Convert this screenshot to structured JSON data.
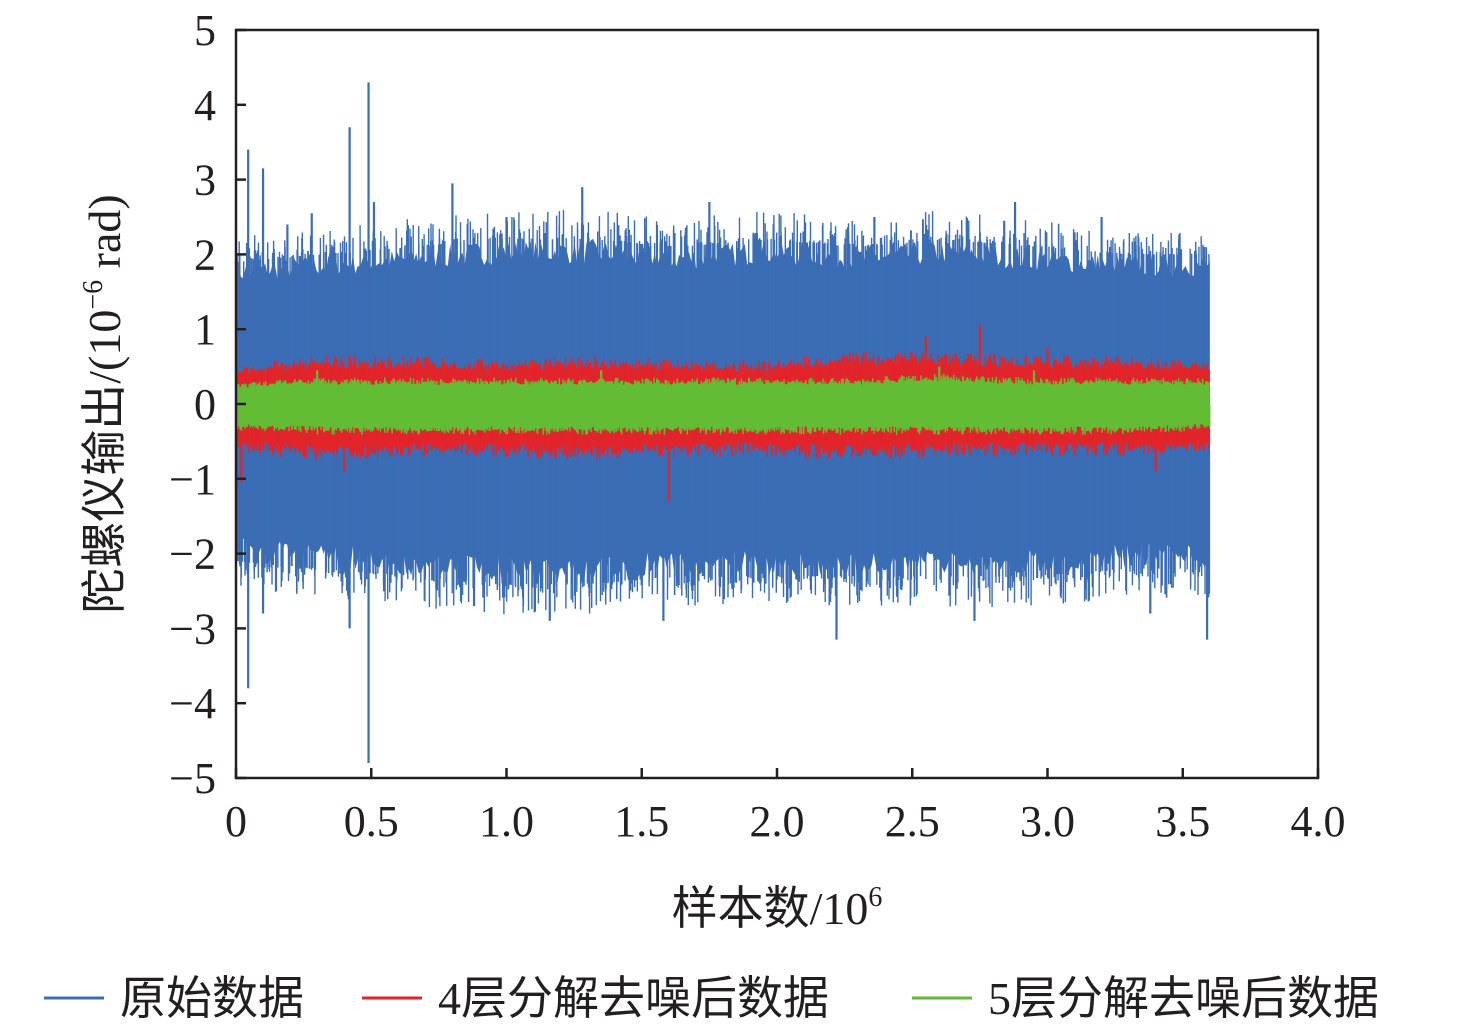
{
  "chart_data": {
    "type": "line",
    "xlabel_main": "样本数/10",
    "xlabel_sup": "6",
    "ylabel_main": "陀螺仪输出/(10",
    "ylabel_sup": "−6",
    "ylabel_tail": " rad)",
    "xlim": [
      0,
      4.0
    ],
    "ylim": [
      -5,
      5
    ],
    "x_ticks": [
      "0",
      "0.5",
      "1.0",
      "1.5",
      "2.0",
      "2.5",
      "3.0",
      "3.5",
      "4.0"
    ],
    "y_ticks": [
      "−5",
      "−4",
      "−3",
      "−2",
      "−1",
      "0",
      "1",
      "2",
      "3",
      "4",
      "5"
    ],
    "x_range_of_data": [
      0,
      3.6
    ],
    "grid": false,
    "legend_position": "bottom",
    "series": [
      {
        "name": "原始数据",
        "color": "#3b6db5",
        "envelope_upper": [
          1.9,
          2.0,
          2.1,
          2.2,
          2.2,
          2.1,
          2.2,
          2.1,
          2.2,
          2.1,
          2.0,
          2.0
        ],
        "envelope_lower": [
          -2.1,
          -2.2,
          -2.3,
          -2.4,
          -2.4,
          -2.3,
          -2.3,
          -2.3,
          -2.3,
          -2.3,
          -2.2,
          -2.2
        ],
        "spikes": [
          {
            "x": 0.045,
            "y": 3.4
          },
          {
            "x": 0.045,
            "y": -3.8
          },
          {
            "x": 0.1,
            "y": 3.15
          },
          {
            "x": 0.1,
            "y": -2.8
          },
          {
            "x": 0.19,
            "y": 2.4
          },
          {
            "x": 0.28,
            "y": 2.55
          },
          {
            "x": 0.42,
            "y": 3.7
          },
          {
            "x": 0.42,
            "y": -3.0
          },
          {
            "x": 0.49,
            "y": 4.3
          },
          {
            "x": 0.49,
            "y": -4.8
          },
          {
            "x": 0.51,
            "y": 2.7
          },
          {
            "x": 0.8,
            "y": 2.95
          },
          {
            "x": 0.88,
            "y": -2.7
          },
          {
            "x": 1.0,
            "y": 2.5
          },
          {
            "x": 1.16,
            "y": -2.9
          },
          {
            "x": 1.28,
            "y": 2.9
          },
          {
            "x": 1.58,
            "y": -2.9
          },
          {
            "x": 1.75,
            "y": 2.7
          },
          {
            "x": 2.22,
            "y": -3.15
          },
          {
            "x": 2.36,
            "y": 2.5
          },
          {
            "x": 2.73,
            "y": -2.9
          },
          {
            "x": 2.88,
            "y": 2.7
          },
          {
            "x": 2.84,
            "y": 2.45
          },
          {
            "x": 3.2,
            "y": 2.5
          },
          {
            "x": 3.38,
            "y": -2.8
          },
          {
            "x": 3.58,
            "y": 2.1
          },
          {
            "x": 3.59,
            "y": -3.15
          }
        ]
      },
      {
        "name": "4层分解去噪后数据",
        "color": "#e2242b",
        "envelope_upper": [
          0.45,
          0.55,
          0.55,
          0.5,
          0.55,
          0.5,
          0.5,
          0.6,
          0.6,
          0.55,
          0.55,
          0.5
        ],
        "envelope_lower": [
          -0.55,
          -0.65,
          -0.6,
          -0.6,
          -0.65,
          -0.6,
          -0.6,
          -0.65,
          -0.6,
          -0.6,
          -0.6,
          -0.55
        ],
        "spikes": [
          {
            "x": 0.02,
            "y": -1.05
          },
          {
            "x": 0.4,
            "y": -0.9
          },
          {
            "x": 1.6,
            "y": -1.3
          },
          {
            "x": 2.55,
            "y": 0.9
          },
          {
            "x": 2.75,
            "y": 1.05
          },
          {
            "x": 3.0,
            "y": 0.75
          },
          {
            "x": 3.4,
            "y": -0.9
          }
        ]
      },
      {
        "name": "5层分解去噪后数据",
        "color": "#62bd35",
        "envelope_upper": [
          0.25,
          0.3,
          0.3,
          0.3,
          0.3,
          0.3,
          0.3,
          0.3,
          0.35,
          0.3,
          0.3,
          0.3
        ],
        "envelope_lower": [
          -0.3,
          -0.35,
          -0.35,
          -0.35,
          -0.35,
          -0.35,
          -0.35,
          -0.35,
          -0.35,
          -0.35,
          -0.35,
          -0.3
        ],
        "spikes": [
          {
            "x": 0.3,
            "y": 0.45
          },
          {
            "x": 1.35,
            "y": 0.45
          },
          {
            "x": 2.6,
            "y": 0.5
          },
          {
            "x": 2.95,
            "y": 0.45
          }
        ]
      }
    ]
  }
}
